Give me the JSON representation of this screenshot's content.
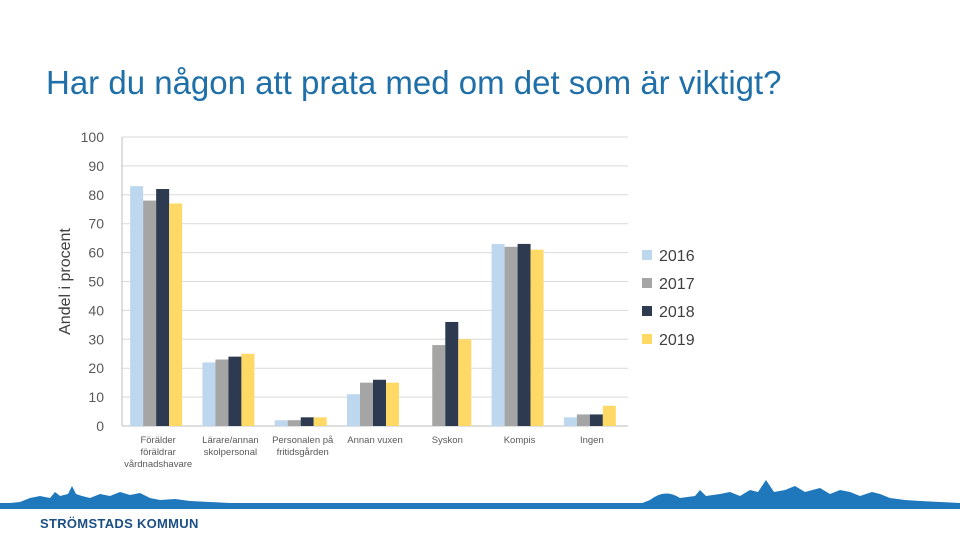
{
  "slide": {
    "title": "Har du någon att prata med om det som är viktigt?",
    "footer_org": "STRÖMSTADS KOMMUN",
    "footer_logo": "town-skyline-logo"
  },
  "colors": {
    "title": "#1f6fa8",
    "footer_bar": "#1f77bc",
    "footer_text": "#1c4f86",
    "series": [
      "#bdd7ee",
      "#a5a5a5",
      "#2e3a4f",
      "#ffd966"
    ]
  },
  "chart_data": {
    "type": "bar",
    "title": "",
    "xlabel": "",
    "ylabel": "Andel i procent",
    "ylim": [
      0,
      100
    ],
    "yticks": [
      0,
      10,
      20,
      30,
      40,
      50,
      60,
      70,
      80,
      90,
      100
    ],
    "grid": true,
    "legend_position": "right",
    "categories": [
      [
        "Förälder",
        "föräldrar",
        "vårdnadshavare"
      ],
      [
        "Lärare/annan",
        "skolpersonal"
      ],
      [
        "Personalen på",
        "fritidsgården"
      ],
      [
        "Annan vuxen"
      ],
      [
        "Syskon"
      ],
      [
        "Kompis"
      ],
      [
        "Ingen"
      ]
    ],
    "series": [
      {
        "name": "2016",
        "values": [
          83,
          22,
          2,
          11,
          0,
          63,
          3
        ]
      },
      {
        "name": "2017",
        "values": [
          78,
          23,
          2,
          15,
          28,
          62,
          4
        ]
      },
      {
        "name": "2018",
        "values": [
          82,
          24,
          3,
          16,
          36,
          63,
          4
        ]
      },
      {
        "name": "2019",
        "values": [
          77,
          25,
          3,
          15,
          30,
          61,
          7
        ]
      }
    ]
  }
}
